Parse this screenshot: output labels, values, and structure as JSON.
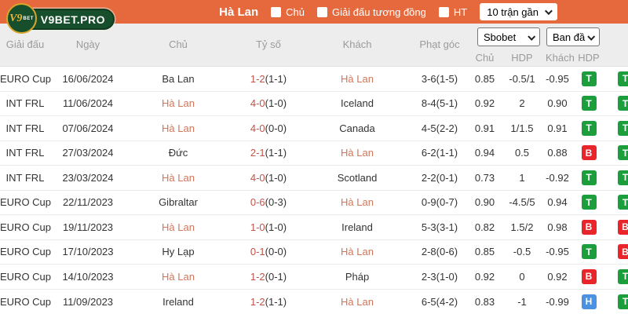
{
  "brand": {
    "logo_text": "V9BET.PRO",
    "logo_circle_main": "V9",
    "logo_circle_sub": "BET"
  },
  "topbar": {
    "title": "Hà Lan",
    "checkboxes": [
      {
        "label": "Chủ"
      },
      {
        "label": "Giải đấu tương đồng"
      },
      {
        "label": "HT"
      }
    ],
    "range_select": "10 trận gần"
  },
  "filters": {
    "bookmaker_select": "Sbobet",
    "line_select": "Ban đầ"
  },
  "table": {
    "headers": {
      "league": "Giải đấu",
      "date": "Ngày",
      "home": "Chủ",
      "score": "Tỷ số",
      "away": "Khách",
      "corners": "Phạt góc",
      "odds_home": "Chủ",
      "hdp": "HDP",
      "odds_away": "Khách",
      "hdp2": "HDP"
    },
    "rows": [
      {
        "league": "EURO Cup",
        "date": "16/06/2024",
        "home": "Ba Lan",
        "home_team": false,
        "score": "1-2",
        "half": "(1-1)",
        "away": "Hà Lan",
        "away_team": true,
        "corners": "3-6(1-5)",
        "odds_home": "0.85",
        "hdp": "-0.5/1",
        "odds_away": "-0.95",
        "badge1": "T",
        "badge1_color": "green",
        "badge2": "T",
        "badge2_color": "green"
      },
      {
        "league": "INT FRL",
        "date": "11/06/2024",
        "home": "Hà Lan",
        "home_team": true,
        "score": "4-0",
        "half": "(1-0)",
        "away": "Iceland",
        "away_team": false,
        "corners": "8-4(5-1)",
        "odds_home": "0.92",
        "hdp": "2",
        "odds_away": "0.90",
        "badge1": "T",
        "badge1_color": "green",
        "badge2": "T",
        "badge2_color": "green"
      },
      {
        "league": "INT FRL",
        "date": "07/06/2024",
        "home": "Hà Lan",
        "home_team": true,
        "score": "4-0",
        "half": "(0-0)",
        "away": "Canada",
        "away_team": false,
        "corners": "4-5(2-2)",
        "odds_home": "0.91",
        "hdp": "1/1.5",
        "odds_away": "0.91",
        "badge1": "T",
        "badge1_color": "green",
        "badge2": "T",
        "badge2_color": "green"
      },
      {
        "league": "INT FRL",
        "date": "27/03/2024",
        "home": "Đức",
        "home_team": false,
        "score": "2-1",
        "half": "(1-1)",
        "away": "Hà Lan",
        "away_team": true,
        "corners": "6-2(1-1)",
        "odds_home": "0.94",
        "hdp": "0.5",
        "odds_away": "0.88",
        "badge1": "B",
        "badge1_color": "red",
        "badge2": "T",
        "badge2_color": "green"
      },
      {
        "league": "INT FRL",
        "date": "23/03/2024",
        "home": "Hà Lan",
        "home_team": true,
        "score": "4-0",
        "half": "(1-0)",
        "away": "Scotland",
        "away_team": false,
        "corners": "2-2(0-1)",
        "odds_home": "0.73",
        "hdp": "1",
        "odds_away": "-0.92",
        "badge1": "T",
        "badge1_color": "green",
        "badge2": "T",
        "badge2_color": "green"
      },
      {
        "league": "EURO Cup",
        "date": "22/11/2023",
        "home": "Gibraltar",
        "home_team": false,
        "score": "0-6",
        "half": "(0-3)",
        "away": "Hà Lan",
        "away_team": true,
        "corners": "0-9(0-7)",
        "odds_home": "0.90",
        "hdp": "-4.5/5",
        "odds_away": "0.94",
        "badge1": "T",
        "badge1_color": "green",
        "badge2": "T",
        "badge2_color": "green"
      },
      {
        "league": "EURO Cup",
        "date": "19/11/2023",
        "home": "Hà Lan",
        "home_team": true,
        "score": "1-0",
        "half": "(1-0)",
        "away": "Ireland",
        "away_team": false,
        "corners": "5-3(3-1)",
        "odds_home": "0.82",
        "hdp": "1.5/2",
        "odds_away": "0.98",
        "badge1": "B",
        "badge1_color": "red",
        "badge2": "B",
        "badge2_color": "red"
      },
      {
        "league": "EURO Cup",
        "date": "17/10/2023",
        "home": "Hy Lạp",
        "home_team": false,
        "score": "0-1",
        "half": "(0-0)",
        "away": "Hà Lan",
        "away_team": true,
        "corners": "2-8(0-6)",
        "odds_home": "0.85",
        "hdp": "-0.5",
        "odds_away": "-0.95",
        "badge1": "T",
        "badge1_color": "green",
        "badge2": "B",
        "badge2_color": "red"
      },
      {
        "league": "EURO Cup",
        "date": "14/10/2023",
        "home": "Hà Lan",
        "home_team": true,
        "score": "1-2",
        "half": "(0-1)",
        "away": "Pháp",
        "away_team": false,
        "corners": "2-3(1-0)",
        "odds_home": "0.92",
        "hdp": "0",
        "odds_away": "0.92",
        "badge1": "B",
        "badge1_color": "red",
        "badge2": "T",
        "badge2_color": "green"
      },
      {
        "league": "EURO Cup",
        "date": "11/09/2023",
        "home": "Ireland",
        "home_team": false,
        "score": "1-2",
        "half": "(1-1)",
        "away": "Hà Lan",
        "away_team": true,
        "corners": "6-5(4-2)",
        "odds_home": "0.83",
        "hdp": "-1",
        "odds_away": "-0.99",
        "badge1": "H",
        "badge1_color": "blue",
        "badge2": "T",
        "badge2_color": "green"
      }
    ]
  },
  "colors": {
    "topbar": "#e5693c",
    "team_highlight": "#d0765a",
    "score_highlight": "#bf5449",
    "badge_green": "#1d9e3d",
    "badge_red": "#e8252b",
    "badge_blue": "#4b93e0",
    "header_band": "#ededed"
  }
}
